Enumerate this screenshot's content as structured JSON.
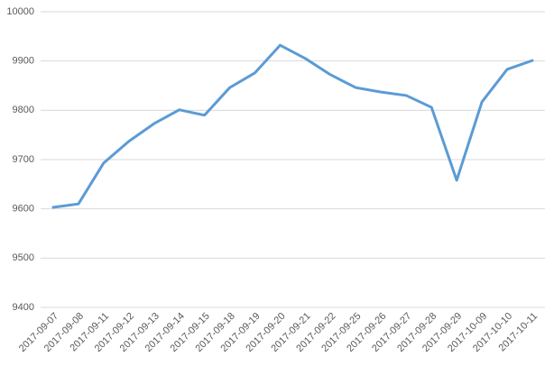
{
  "chart_data": {
    "type": "line",
    "categories": [
      "2017-09-07",
      "2017-09-08",
      "2017-09-11",
      "2017-09-12",
      "2017-09-13",
      "2017-09-14",
      "2017-09-15",
      "2017-09-18",
      "2017-09-19",
      "2017-09-20",
      "2017-09-21",
      "2017-09-22",
      "2017-09-25",
      "2017-09-26",
      "2017-09-27",
      "2017-09-28",
      "2017-09-29",
      "2017-10-09",
      "2017-10-10",
      "2017-10-11"
    ],
    "series": [
      {
        "color": "#5b9bd5",
        "values": [
          9603,
          9610,
          9693,
          9737,
          9773,
          9801,
          9790,
          9846,
          9876,
          9932,
          9905,
          9872,
          9846,
          9837,
          9830,
          9806,
          9658,
          9817,
          9883,
          9901
        ]
      }
    ],
    "ylim": [
      9400,
      10000
    ],
    "yticks": [
      9400,
      9500,
      9600,
      9700,
      9800,
      9900,
      10000
    ],
    "grid": true
  }
}
